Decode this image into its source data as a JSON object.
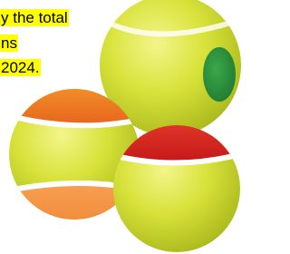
{
  "text": {
    "lines": [
      "y the total",
      "ns",
      "2024."
    ]
  }
}
